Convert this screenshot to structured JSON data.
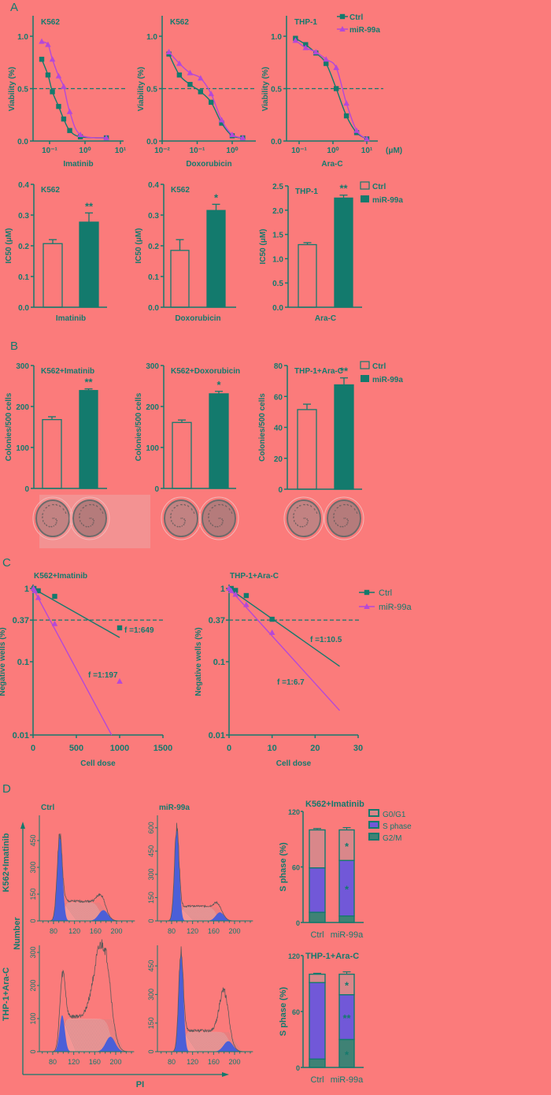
{
  "panel_labels": {
    "a": "A",
    "b": "B",
    "c": "C",
    "d": "D"
  },
  "legend": {
    "ctrl": "Ctrl",
    "mir": "miR-99a",
    "g0g1": "G0/G1",
    "s_phase": "S phase",
    "g2m": "G2/M"
  },
  "shared_labels": {
    "pi": "PI",
    "number": "Number",
    "row_k562": "K562+Imatinib",
    "row_thp1": "THP-1+Ara-C"
  },
  "colors": {
    "background": "#fb7b7b",
    "teal": "#137a6d",
    "purple": "#b548d8",
    "histogram_fill": "#4b5fd8",
    "g0g1": "#d9878a",
    "s_phase": "#7158d8",
    "g2m": "#3f8275"
  },
  "chart_data": [
    {
      "type": "line",
      "title": "K562",
      "xlabel": "Imatinib",
      "ylabel": "Viability (%)",
      "xscale": "log",
      "xticks": [
        0.1,
        1,
        10
      ],
      "xtick_labels": [
        "10⁻¹",
        "10⁰",
        "10¹"
      ],
      "ylim": [
        0,
        1.2
      ],
      "yticks": [
        0,
        0.5,
        1.0
      ],
      "ytick_labels": [
        "0.0",
        "0.5",
        "1.0"
      ],
      "reference_line": 0.5,
      "series": [
        {
          "name": "Ctrl",
          "marker": "square",
          "x": [
            0.06,
            0.09,
            0.12,
            0.18,
            0.25,
            0.37,
            0.74,
            4
          ],
          "y": [
            0.78,
            0.63,
            0.47,
            0.33,
            0.21,
            0.1,
            0.04,
            0.03
          ]
        },
        {
          "name": "miR-99a",
          "marker": "triangle",
          "x": [
            0.06,
            0.09,
            0.12,
            0.18,
            0.25,
            0.37,
            0.74,
            4
          ],
          "y": [
            0.95,
            0.92,
            0.78,
            0.62,
            0.52,
            0.28,
            0.06,
            0.03
          ]
        }
      ]
    },
    {
      "type": "line",
      "title": "K562",
      "xlabel": "Doxorubicin",
      "ylabel": "Viability (%)",
      "xscale": "log",
      "xticks": [
        0.01,
        0.1,
        1
      ],
      "xtick_labels": [
        "10⁻²",
        "10⁻¹",
        "10⁰"
      ],
      "ylim": [
        0,
        1.2
      ],
      "yticks": [
        0,
        0.5,
        1.0
      ],
      "ytick_labels": [
        "0.0",
        "0.5",
        "1.0"
      ],
      "reference_line": 0.5,
      "series": [
        {
          "name": "Ctrl",
          "marker": "square",
          "x": [
            0.0156,
            0.031,
            0.0625,
            0.125,
            0.25,
            0.5,
            1,
            2
          ],
          "y": [
            0.83,
            0.63,
            0.54,
            0.47,
            0.37,
            0.17,
            0.05,
            0.03
          ]
        },
        {
          "name": "miR-99a",
          "marker": "triangle",
          "x": [
            0.0156,
            0.031,
            0.0625,
            0.125,
            0.25,
            0.5,
            1,
            2
          ],
          "y": [
            0.85,
            0.74,
            0.65,
            0.6,
            0.45,
            0.2,
            0.06,
            0.03
          ]
        }
      ]
    },
    {
      "type": "line",
      "title": "THP-1",
      "xlabel": "Ara-C",
      "ylabel": "Viability (%)",
      "x_unit": "(μM)",
      "xscale": "log",
      "legend": "top-right",
      "xticks": [
        0.1,
        1,
        10
      ],
      "xtick_labels": [
        "10⁻¹",
        "10⁰",
        "10¹"
      ],
      "ylim": [
        0,
        1.2
      ],
      "yticks": [
        0,
        0.5,
        1.0
      ],
      "ytick_labels": [
        "0.0",
        "0.5",
        "1.0"
      ],
      "reference_line": 0.5,
      "series": [
        {
          "name": "Ctrl",
          "marker": "square",
          "x": [
            0.078,
            0.156,
            0.3125,
            0.625,
            1.25,
            2.5,
            5,
            10
          ],
          "y": [
            0.98,
            0.92,
            0.84,
            0.74,
            0.5,
            0.24,
            0.08,
            0.02
          ]
        },
        {
          "name": "miR-99a",
          "marker": "triangle",
          "x": [
            0.078,
            0.156,
            0.3125,
            0.625,
            1.25,
            2.5,
            5,
            10
          ],
          "y": [
            0.96,
            0.89,
            0.85,
            0.78,
            0.7,
            0.36,
            0.1,
            0.02
          ]
        }
      ]
    },
    {
      "type": "bar",
      "title": "K562",
      "xlabel": "Imatinib",
      "ylabel": "IC50 (μM)",
      "ylim": [
        0,
        0.4
      ],
      "yticks": [
        0,
        0.1,
        0.2,
        0.3,
        0.4
      ],
      "ytick_labels": [
        "0.0",
        "0.1",
        "0.2",
        "0.3",
        "0.4"
      ],
      "categories": [
        "Ctrl",
        "miR-99a"
      ],
      "values": [
        0.207,
        0.277
      ],
      "errors": [
        0.013,
        0.03
      ],
      "significance": [
        "",
        "**"
      ]
    },
    {
      "type": "bar",
      "title": "K562",
      "xlabel": "Doxorubicin",
      "ylabel": "IC50 (μM)",
      "ylim": [
        0,
        0.4
      ],
      "yticks": [
        0,
        0.1,
        0.2,
        0.3,
        0.4
      ],
      "ytick_labels": [
        "0.0",
        "0.1",
        "0.2",
        "0.3",
        "0.4"
      ],
      "categories": [
        "Ctrl",
        "miR-99a"
      ],
      "values": [
        0.185,
        0.315
      ],
      "errors": [
        0.035,
        0.02
      ],
      "significance": [
        "",
        "*"
      ]
    },
    {
      "type": "bar",
      "title": "THP-1",
      "xlabel": "Ara-C",
      "ylabel": "IC50 (μM)",
      "ylim": [
        0,
        2.5
      ],
      "yticks": [
        0,
        0.5,
        1.0,
        1.5,
        2.0,
        2.5
      ],
      "ytick_labels": [
        "0.0",
        "0.5",
        "1.0",
        "1.5",
        "2.0",
        "2.5"
      ],
      "legend": "top-right",
      "categories": [
        "Ctrl",
        "miR-99a"
      ],
      "values": [
        1.29,
        2.25
      ],
      "errors": [
        0.04,
        0.06
      ],
      "significance": [
        "",
        "**"
      ]
    },
    {
      "type": "bar",
      "title": "K562+Imatinib",
      "ylabel": "Colonies/500 cells",
      "ylim": [
        0,
        300
      ],
      "yticks": [
        0,
        100,
        200,
        300
      ],
      "ytick_labels": [
        "0",
        "100",
        "200",
        "300"
      ],
      "categories": [
        "Ctrl",
        "miR-99a"
      ],
      "values": [
        168,
        239
      ],
      "errors": [
        7,
        4
      ],
      "significance": [
        "",
        "**"
      ]
    },
    {
      "type": "bar",
      "title": "K562+Doxorubicin",
      "ylabel": "Colonies/500 cells",
      "ylim": [
        0,
        300
      ],
      "yticks": [
        0,
        100,
        200,
        300
      ],
      "ytick_labels": [
        "0",
        "100",
        "200",
        "300"
      ],
      "categories": [
        "Ctrl",
        "miR-99a"
      ],
      "values": [
        161,
        231
      ],
      "errors": [
        6,
        6
      ],
      "significance": [
        "",
        "*"
      ]
    },
    {
      "type": "bar",
      "title": "THP-1+Ara-C",
      "ylabel": "Colonies/500 cells",
      "ylim": [
        0,
        80
      ],
      "yticks": [
        0,
        20,
        40,
        60,
        80
      ],
      "ytick_labels": [
        "0",
        "20",
        "40",
        "60",
        "80"
      ],
      "legend": "top-right",
      "categories": [
        "Ctrl",
        "miR-99a"
      ],
      "values": [
        51.5,
        67.5
      ],
      "errors": [
        3.5,
        4.5
      ],
      "significance": [
        "",
        "**"
      ]
    },
    {
      "type": "line",
      "title": "K562+Imatinib",
      "xlabel": "Cell dose",
      "ylabel": "Negative wells (%)",
      "yscale": "log",
      "xlim": [
        0,
        1500
      ],
      "ylim": [
        0.01,
        1
      ],
      "xticks": [
        0,
        500,
        1000,
        1500
      ],
      "xtick_labels": [
        "0",
        "500",
        "1000",
        "1500"
      ],
      "yticks": [
        0.01,
        0.1,
        0.37,
        1
      ],
      "ytick_labels": [
        "0.01",
        "0.1",
        "0.37",
        "1"
      ],
      "reference_line": 0.37,
      "series": [
        {
          "name": "Ctrl",
          "marker": "square",
          "x": [
            10,
            60,
            250,
            1000
          ],
          "y": [
            1,
            0.93,
            0.78,
            0.29
          ],
          "frequency_label": "f =1:649"
        },
        {
          "name": "miR-99a",
          "marker": "triangle",
          "x": [
            5,
            20,
            60,
            250,
            1000
          ],
          "y": [
            1,
            0.93,
            0.75,
            0.33,
            0.054
          ],
          "frequency_label": "f =1:197"
        }
      ]
    },
    {
      "type": "line",
      "title": "THP-1+Ara-C",
      "xlabel": "Cell dose",
      "ylabel": "Negative wells (%)",
      "yscale": "log",
      "xlim": [
        0,
        30
      ],
      "ylim": [
        0.01,
        1
      ],
      "legend": "right",
      "xticks": [
        0,
        10,
        20,
        30
      ],
      "xtick_labels": [
        "0",
        "10",
        "20",
        "30"
      ],
      "yticks": [
        0.01,
        0.1,
        0.37,
        1
      ],
      "ytick_labels": [
        "0.01",
        "0.1",
        "0.37",
        "1"
      ],
      "reference_line": 0.37,
      "series": [
        {
          "name": "Ctrl",
          "marker": "square",
          "x": [
            0.5,
            1.5,
            4,
            10
          ],
          "y": [
            1,
            0.94,
            0.8,
            0.38
          ],
          "frequency_label": "f =1:10.5"
        },
        {
          "name": "miR-99a",
          "marker": "triangle",
          "x": [
            0,
            0.5,
            1.5,
            4,
            10
          ],
          "y": [
            1,
            0.93,
            0.83,
            0.6,
            0.25
          ],
          "frequency_label": "f =1:6.7"
        }
      ]
    },
    {
      "type": "histogram",
      "title": "Ctrl",
      "row": "K562+Imatinib",
      "xticks": [
        80,
        120,
        160,
        200
      ],
      "xtick_labels": [
        "80",
        "120",
        "160",
        "200"
      ],
      "yticks": [
        0,
        150,
        300,
        450
      ],
      "ytick_labels": [
        "0",
        "150",
        "300",
        "450"
      ]
    },
    {
      "type": "histogram",
      "title": "miR-99a",
      "row": "K562+Imatinib",
      "xticks": [
        80,
        120,
        160,
        200
      ],
      "xtick_labels": [
        "80",
        "120",
        "160",
        "200"
      ],
      "yticks": [
        0,
        150,
        300,
        450,
        600
      ],
      "ytick_labels": [
        "0",
        "150",
        "300",
        "450",
        "600"
      ]
    },
    {
      "type": "histogram",
      "row": "THP-1+Ara-C",
      "xticks": [
        80,
        120,
        160,
        200
      ],
      "xtick_labels": [
        "80",
        "120",
        "160",
        "200"
      ],
      "yticks": [
        0,
        100,
        200,
        300
      ],
      "ytick_labels": [
        "0",
        "100",
        "200",
        "300"
      ]
    },
    {
      "type": "histogram",
      "row": "THP-1+Ara-C",
      "xticks": [
        80,
        120,
        160,
        200
      ],
      "xtick_labels": [
        "80",
        "120",
        "160",
        "200"
      ],
      "yticks": [
        0,
        150,
        300,
        450
      ],
      "ytick_labels": [
        "0",
        "150",
        "300",
        "450"
      ]
    },
    {
      "type": "stacked_bar",
      "title": "K562+Imatinib",
      "ylabel": "S phase (%)",
      "ylim": [
        0,
        120
      ],
      "yticks": [
        0,
        60,
        120
      ],
      "ytick_labels": [
        "0",
        "60",
        "120"
      ],
      "legend": "top-right",
      "categories": [
        "Ctrl",
        "miR-99a"
      ],
      "series": [
        {
          "name": "G2/M",
          "values": [
            11,
            7
          ],
          "errors": [
            1,
            1
          ],
          "significance": [
            "",
            ""
          ]
        },
        {
          "name": "S phase",
          "values": [
            48,
            60
          ],
          "errors": [
            2,
            1
          ],
          "significance": [
            "",
            "*"
          ]
        },
        {
          "name": "G0/G1",
          "values": [
            41,
            33
          ],
          "errors": [
            1.5,
            2.5
          ],
          "significance": [
            "",
            "*"
          ]
        }
      ]
    },
    {
      "type": "stacked_bar",
      "title": "THP-1+Ara-C",
      "ylabel": "S phase (%)",
      "ylim": [
        0,
        120
      ],
      "yticks": [
        0,
        60,
        120
      ],
      "ytick_labels": [
        "0",
        "60",
        "120"
      ],
      "categories": [
        "Ctrl",
        "miR-99a"
      ],
      "series": [
        {
          "name": "G2/M",
          "values": [
            9,
            30
          ],
          "errors": [
            1.5,
            2.5
          ],
          "significance": [
            "",
            "*"
          ]
        },
        {
          "name": "S phase",
          "values": [
            82,
            48
          ],
          "errors": [
            1,
            1
          ],
          "significance": [
            "",
            "**"
          ]
        },
        {
          "name": "G0/G1",
          "values": [
            9,
            22
          ],
          "errors": [
            1,
            2.5
          ],
          "significance": [
            "",
            "*"
          ]
        }
      ]
    }
  ]
}
